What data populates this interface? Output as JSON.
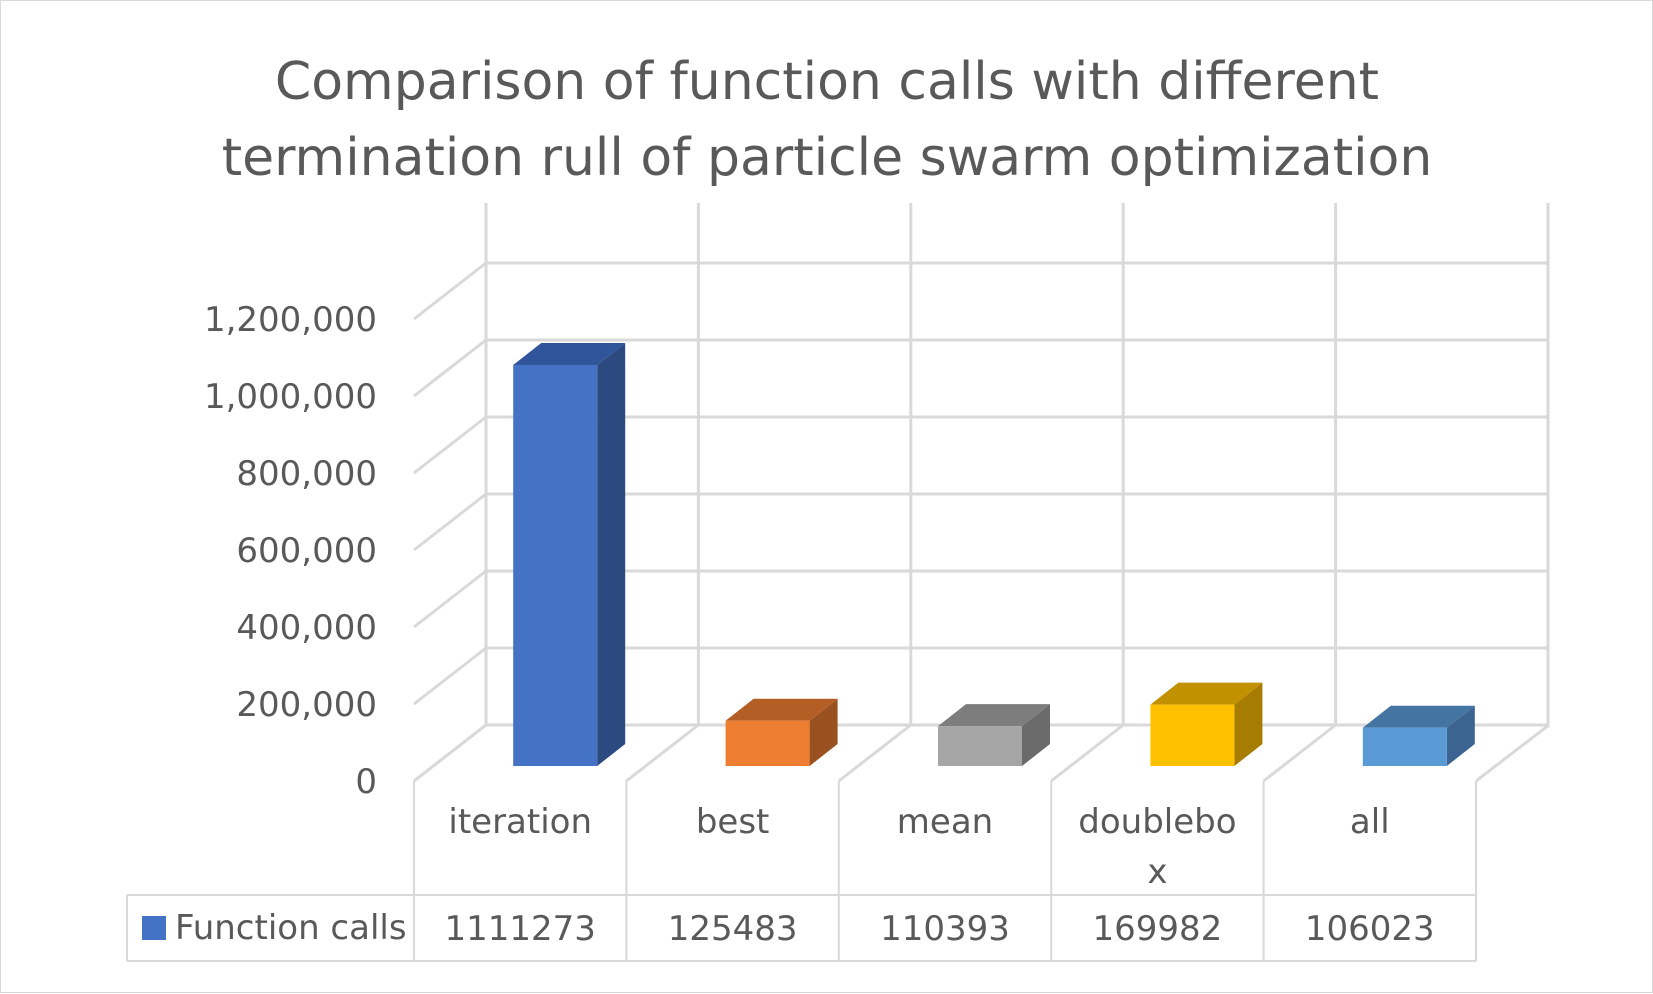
{
  "chart_data": {
    "type": "bar",
    "style": "3d-clustered-column",
    "title_lines": [
      "Comparison of function calls with different",
      "termination rull of particle swarm optimization"
    ],
    "categories": [
      "iteration",
      "best",
      "mean",
      "doublebox",
      "all"
    ],
    "category_display_lines": [
      [
        "iteration"
      ],
      [
        "best"
      ],
      [
        "mean"
      ],
      [
        "doublebo",
        "x"
      ],
      [
        "all"
      ]
    ],
    "series": [
      {
        "name": "Function calls",
        "values": [
          1111273,
          125483,
          110393,
          169982,
          106023
        ],
        "table_values": [
          "1111273",
          "125483",
          "110393",
          "169982",
          "106023"
        ]
      }
    ],
    "y_ticks": [
      "0",
      "200,000",
      "400,000",
      "600,000",
      "800,000",
      "1,000,000",
      "1,200,000"
    ],
    "ylim": [
      0,
      1200000
    ],
    "grid": true,
    "data_table": true,
    "colors": {
      "front": [
        "#4472c4",
        "#ed7d31",
        "#a5a5a5",
        "#ffc000",
        "#5b9bd5"
      ],
      "side": [
        "#2c4a80",
        "#9a5120",
        "#6b6b6b",
        "#a67d00",
        "#3b6590"
      ],
      "top": [
        "#30559a",
        "#b35e24",
        "#7d7d7d",
        "#c29100",
        "#4474a1"
      ],
      "gridline": "#d9d9d9",
      "text": "#595959",
      "legend_key": "#4472c4"
    }
  }
}
